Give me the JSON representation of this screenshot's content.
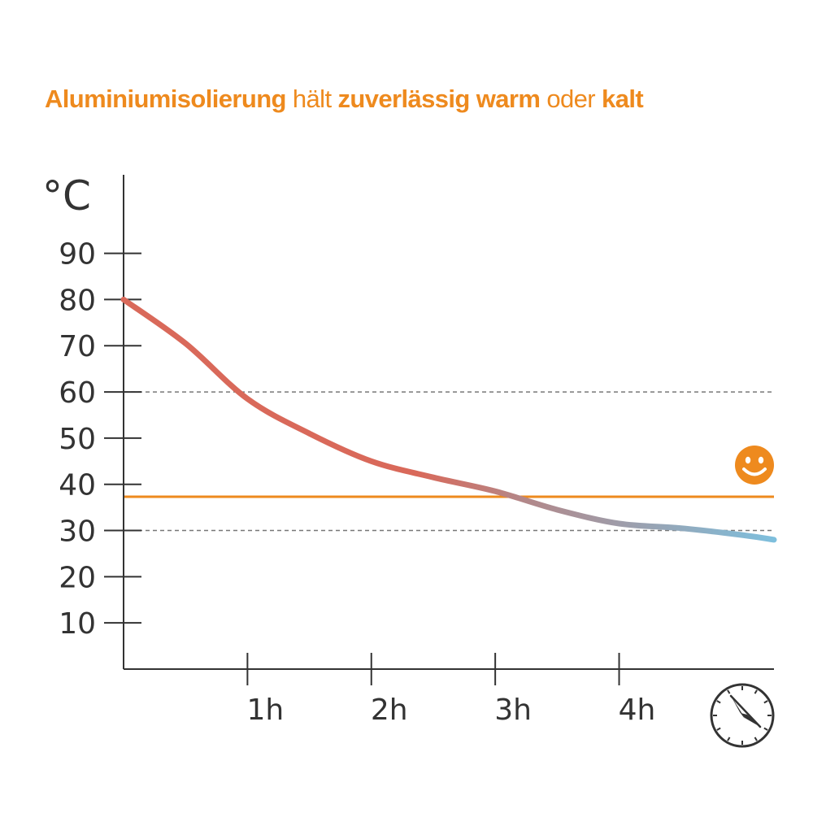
{
  "title": {
    "parts": [
      {
        "text": "Aluminiumisolierung",
        "bold": true
      },
      {
        "text": " hält ",
        "bold": false
      },
      {
        "text": "zuverlässig warm",
        "bold": true
      },
      {
        "text": " oder ",
        "bold": false
      },
      {
        "text": "kalt",
        "bold": true
      }
    ]
  },
  "colors": {
    "accent": "#ee8a1e",
    "axis": "#333333",
    "curve_warm": "#d9695a",
    "curve_mid": "#b2888a",
    "curve_cold": "#7ebfdd",
    "guide": "#777777"
  },
  "chart_data": {
    "type": "line",
    "ylabel": "°C",
    "xlabel": "",
    "y_ticks": [
      10,
      20,
      30,
      40,
      50,
      60,
      70,
      80,
      90
    ],
    "x_ticks": [
      {
        "value": 1,
        "label": "1h"
      },
      {
        "value": 2,
        "label": "2h"
      },
      {
        "value": 3,
        "label": "3h"
      },
      {
        "value": 4,
        "label": "4h"
      }
    ],
    "xlim": [
      0,
      5.25
    ],
    "ylim": [
      0,
      107
    ],
    "series": [
      {
        "x": [
          0,
          0.5,
          1.0,
          1.5,
          2.0,
          2.5,
          3.0,
          3.5,
          4.0,
          4.5,
          5.0,
          5.25
        ],
        "y": [
          80,
          70.5,
          58.5,
          51,
          45,
          41.5,
          38.5,
          34.5,
          31.5,
          30.5,
          29,
          28
        ]
      }
    ],
    "reference_lines": [
      {
        "y": 60,
        "style": "dashed"
      },
      {
        "y": 30,
        "style": "dashed"
      },
      {
        "y": 37.3,
        "style": "solid",
        "color": "accent"
      }
    ],
    "annotations": [
      {
        "icon": "smiley-icon",
        "near": "orange-reference-line"
      },
      {
        "icon": "clock-icon",
        "near": "x-axis-end"
      }
    ],
    "grid": false,
    "legend": "none"
  }
}
